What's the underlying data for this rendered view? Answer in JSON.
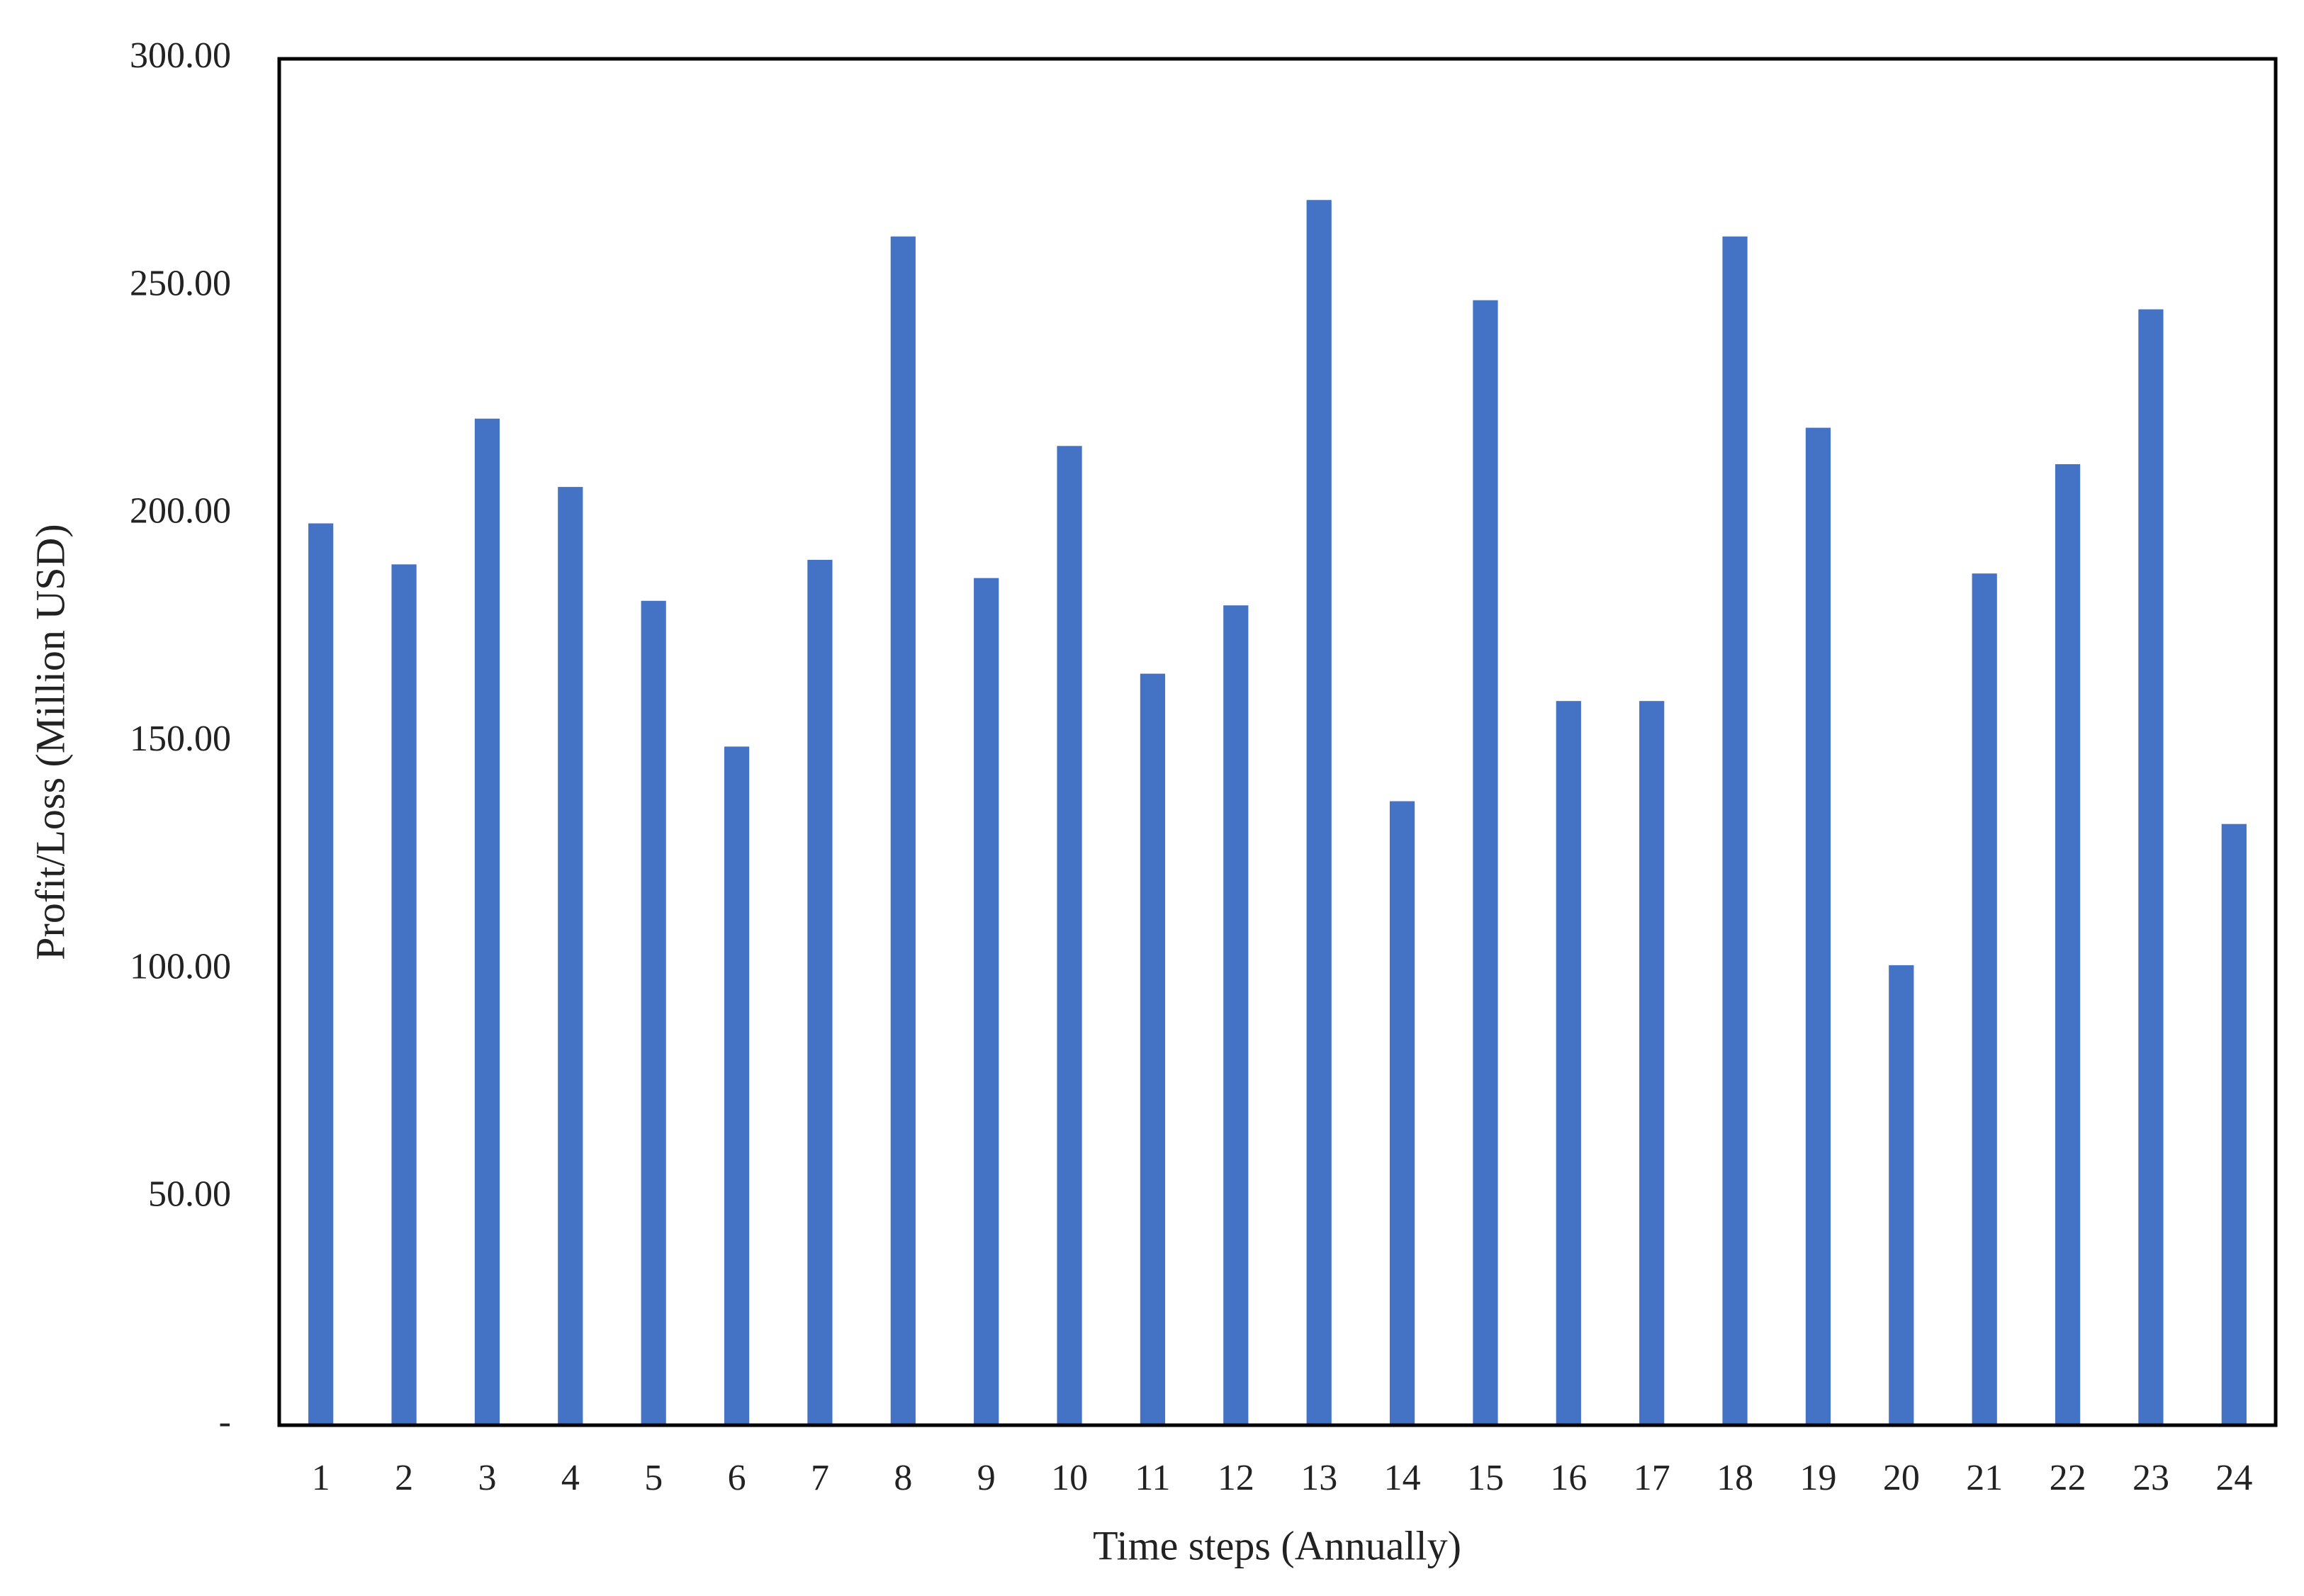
{
  "chart_data": {
    "type": "bar",
    "x_label": "Time steps (Annually)",
    "y_label": "Profit/Loss (Million USD)",
    "categories": [
      "1",
      "2",
      "3",
      "4",
      "5",
      "6",
      "7",
      "8",
      "9",
      "10",
      "11",
      "12",
      "13",
      "14",
      "15",
      "16",
      "17",
      "18",
      "19",
      "20",
      "21",
      "22",
      "23",
      "24"
    ],
    "values": [
      198,
      189,
      221,
      206,
      181,
      149,
      190,
      261,
      186,
      215,
      165,
      180,
      269,
      137,
      247,
      159,
      159,
      261,
      219,
      101,
      187,
      211,
      245,
      132
    ],
    "color": "#4472c4",
    "ylim": [
      0,
      300
    ],
    "yticks": [
      {
        "value": 0,
        "label": "-"
      },
      {
        "value": 50,
        "label": "50.00"
      },
      {
        "value": 100,
        "label": "100.00"
      },
      {
        "value": 150,
        "label": "150.00"
      },
      {
        "value": 200,
        "label": "200.00"
      },
      {
        "value": 250,
        "label": "250.00"
      },
      {
        "value": 300,
        "label": "300.00"
      }
    ],
    "grid": false
  }
}
